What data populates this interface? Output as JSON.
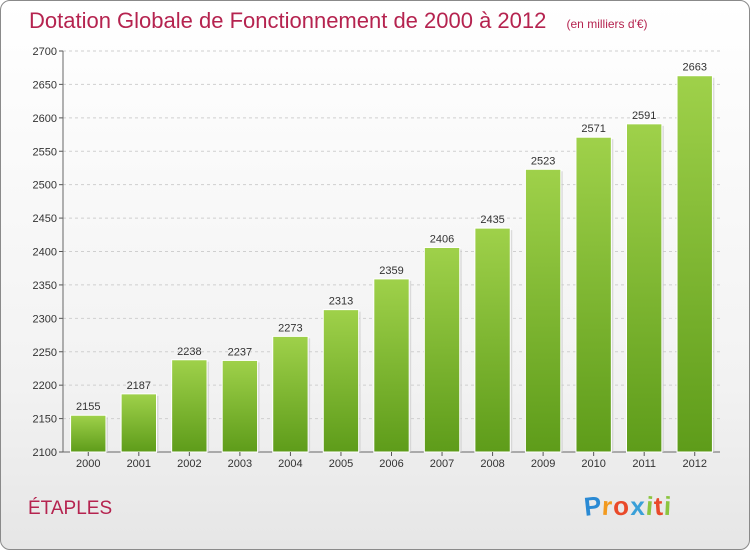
{
  "title": "Dotation Globale de Fonctionnement de 2000 à 2012",
  "unit_label": "(en milliers d'€)",
  "location": "ÉTAPLES",
  "logo": {
    "letters": [
      "P",
      "r",
      "o",
      "x",
      "i",
      "t",
      "i"
    ],
    "colors": [
      "#2a8ad4",
      "#f29a1f",
      "#e94a2a",
      "#3aa0d8",
      "#8bc53f",
      "#e94a2a",
      "#8bc53f"
    ]
  },
  "colors": {
    "bar_top": "#9fd14a",
    "bar_bottom": "#5e9c1a",
    "title": "#b5234f",
    "grid": "#cfcfcf"
  },
  "chart_data": {
    "type": "bar",
    "title": "Dotation Globale de Fonctionnement de 2000 à 2012",
    "ylabel": "en milliers d'€",
    "categories": [
      "2000",
      "2001",
      "2002",
      "2003",
      "2004",
      "2005",
      "2006",
      "2007",
      "2008",
      "2009",
      "2010",
      "2011",
      "2012"
    ],
    "values": [
      2155,
      2187,
      2238,
      2237,
      2273,
      2313,
      2359,
      2406,
      2435,
      2523,
      2571,
      2591,
      2663
    ],
    "ylim": [
      2100,
      2700
    ],
    "yticks": [
      2100,
      2150,
      2200,
      2250,
      2300,
      2350,
      2400,
      2450,
      2500,
      2550,
      2600,
      2650,
      2700
    ],
    "grid": true
  }
}
